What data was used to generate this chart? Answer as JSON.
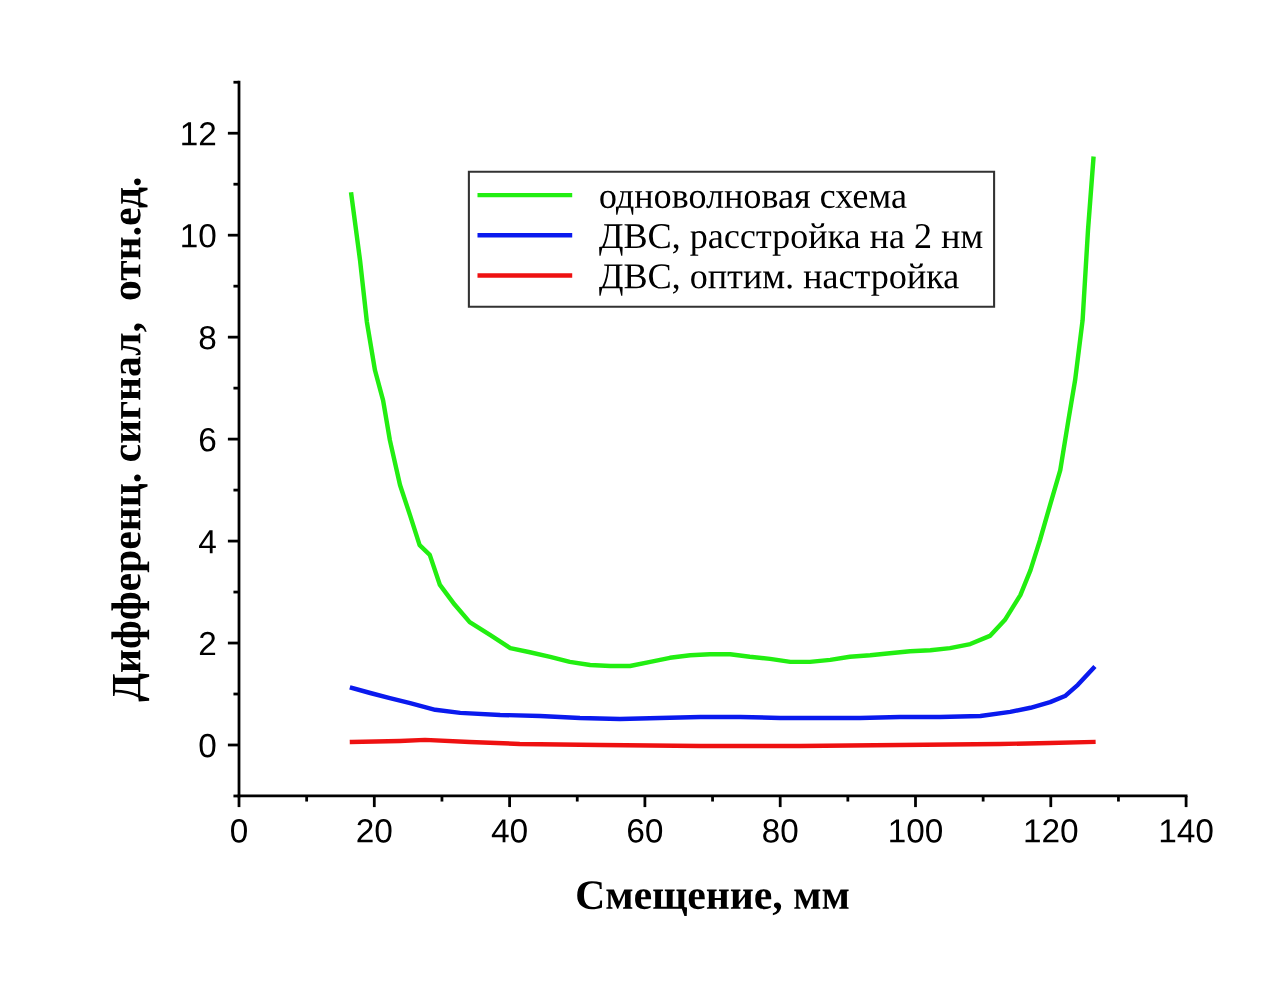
{
  "chart_data": {
    "type": "line",
    "xlabel": "Смещение, мм",
    "ylabel": "Дифференц. сигнал,  отн.ед.",
    "xlim": [
      0,
      140
    ],
    "xticks": [
      0,
      20,
      40,
      60,
      80,
      100,
      120,
      140
    ],
    "ylim": [
      -1,
      13
    ],
    "yticks": [
      0,
      2,
      4,
      6,
      8,
      10,
      12
    ],
    "grid": false,
    "legend": "top",
    "line_style": "solid",
    "marker": "none",
    "series": [
      {
        "name": "одноволновая схема",
        "color": "#22ee11",
        "x": [
          16.6,
          17.9,
          18.9,
          20.1,
          21.3,
          22.3,
          23.8,
          25.3,
          26.7,
          28.2,
          29.7,
          31.9,
          34.1,
          37.1,
          40.1,
          43.0,
          46.0,
          48.9,
          51.9,
          54.9,
          57.8,
          60.8,
          63.7,
          66.7,
          69.6,
          72.6,
          75.5,
          78.5,
          81.5,
          84.4,
          87.4,
          90.3,
          93.3,
          96.2,
          99.2,
          102.2,
          105.1,
          108.1,
          111.0,
          113.2,
          115.5,
          117.0,
          118.4,
          119.9,
          121.4,
          122.6,
          123.6,
          124.7,
          125.5,
          126.3
        ],
        "values": [
          10.8,
          9.5,
          8.3,
          7.35,
          6.76,
          5.98,
          5.1,
          4.5,
          3.92,
          3.73,
          3.14,
          2.75,
          2.41,
          2.16,
          1.9,
          1.82,
          1.73,
          1.63,
          1.57,
          1.55,
          1.55,
          1.63,
          1.71,
          1.76,
          1.78,
          1.78,
          1.73,
          1.69,
          1.63,
          1.63,
          1.67,
          1.73,
          1.76,
          1.8,
          1.84,
          1.86,
          1.9,
          1.98,
          2.14,
          2.45,
          2.94,
          3.43,
          4.02,
          4.71,
          5.39,
          6.37,
          7.16,
          8.33,
          10.1,
          11.5
        ]
      },
      {
        "name": "ДВС, расстройка на 2 нм",
        "color": "#0a1aee",
        "x": [
          16.7,
          19.4,
          22.3,
          25.3,
          29.0,
          32.7,
          38.6,
          44.5,
          50.4,
          56.3,
          62.2,
          68.2,
          74.1,
          80.0,
          85.9,
          91.8,
          97.7,
          103.6,
          109.6,
          114.0,
          117.0,
          119.9,
          122.1,
          124.0,
          126.3
        ],
        "values": [
          1.12,
          1.02,
          0.92,
          0.82,
          0.69,
          0.63,
          0.59,
          0.57,
          0.53,
          0.51,
          0.53,
          0.55,
          0.55,
          0.53,
          0.53,
          0.53,
          0.55,
          0.55,
          0.57,
          0.65,
          0.73,
          0.84,
          0.96,
          1.18,
          1.51
        ]
      },
      {
        "name": "ДВС, оптим. настройка",
        "color": "#ee1111",
        "x": [
          16.7,
          23.8,
          27.5,
          34.1,
          41.5,
          53.4,
          68.2,
          82.9,
          97.7,
          112.5,
          119.9,
          126.3
        ],
        "values": [
          0.06,
          0.08,
          0.1,
          0.06,
          0.02,
          0.0,
          -0.02,
          -0.02,
          0.0,
          0.02,
          0.04,
          0.06
        ]
      }
    ]
  }
}
